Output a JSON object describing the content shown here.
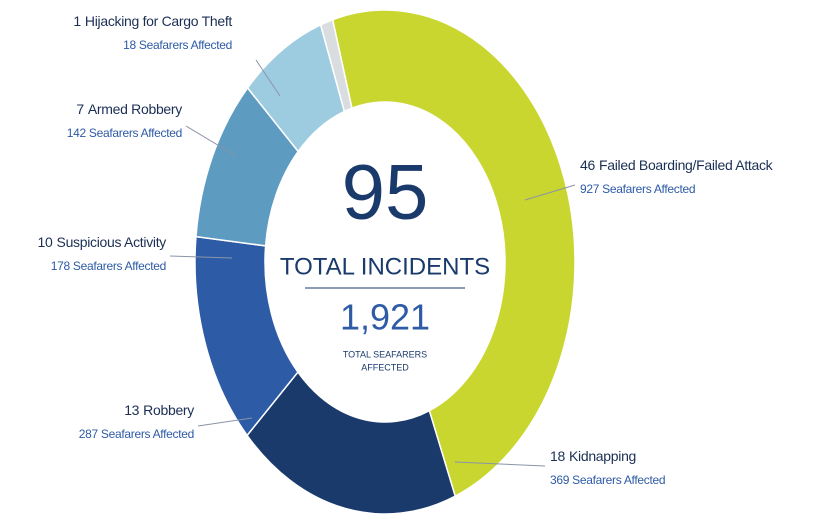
{
  "chart_data": {
    "type": "pie",
    "categories": [
      "Failed Boarding/Failed Attack",
      "Kidnapping",
      "Robbery",
      "Suspicious Activity",
      "Armed Robbery",
      "Hijacking for Cargo Theft"
    ],
    "values": [
      46,
      18,
      13,
      10,
      7,
      1
    ],
    "colors": [
      "#c9d62f",
      "#1a3a6c",
      "#2d5ba6",
      "#5e9bc1",
      "#9dcbe0",
      "#d9dde0"
    ],
    "seafarers": [
      927,
      369,
      287,
      178,
      142,
      18
    ],
    "seafarers_label": "Seafarers Affected",
    "total": {
      "incidents": 95,
      "incidents_label": "TOTAL INCIDENTS",
      "seafarers": {
        "value": 1921,
        "label": "1,921"
      },
      "seafarers_label": [
        "TOTAL SEAFARERS",
        "AFFECTED"
      ]
    }
  }
}
